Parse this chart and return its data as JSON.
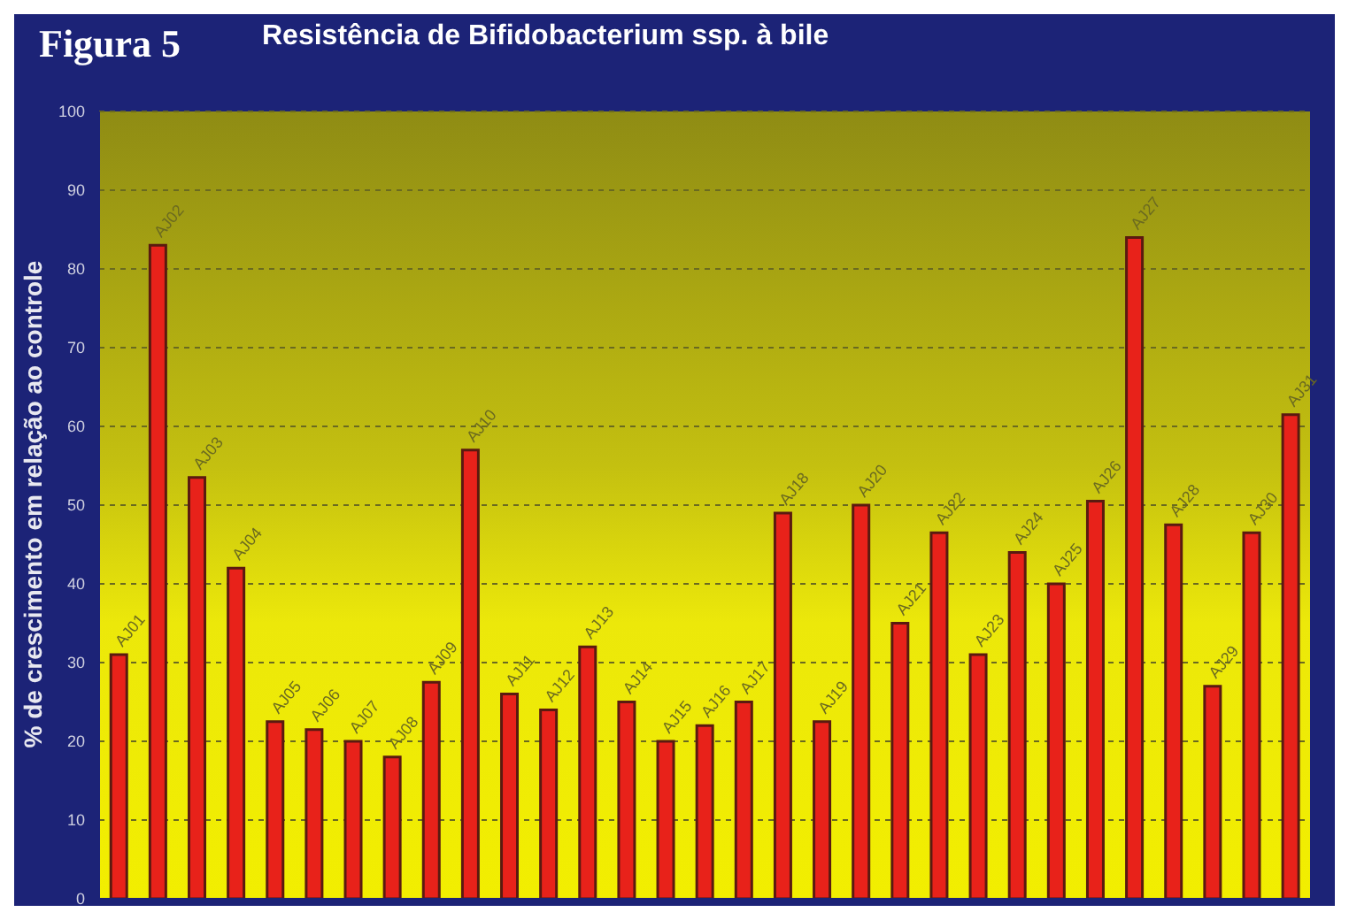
{
  "chart_data": {
    "type": "bar",
    "title": "Resistência de Bifidobacterium ssp. à bile",
    "annotations": [
      "Figura 5"
    ],
    "ylabel": "% de crescimento em relação ao controle",
    "categories": [
      "AJ01",
      "AJ02",
      "AJ03",
      "AJ04",
      "AJ05",
      "AJ06",
      "AJ07",
      "AJ08",
      "AJ09",
      "AJ10",
      "AJ11",
      "AJ12",
      "AJ13",
      "AJ14",
      "AJ15",
      "AJ16",
      "AJ17",
      "AJ18",
      "AJ19",
      "AJ20",
      "AJ21",
      "AJ22",
      "AJ23",
      "AJ24",
      "AJ25",
      "AJ26",
      "AJ27",
      "AJ28",
      "AJ29",
      "AJ30",
      "AJ31"
    ],
    "values": [
      31,
      83,
      53.5,
      42,
      22.5,
      21.5,
      20,
      18,
      27.5,
      57,
      26,
      24,
      32,
      25,
      20,
      22,
      25,
      49,
      22.5,
      50,
      35,
      46.5,
      31,
      44,
      40,
      50.5,
      84,
      47.5,
      27,
      46.5,
      61.5
    ],
    "color": "#e8221a",
    "ylim": [
      0,
      100
    ],
    "yticks": [
      0,
      10,
      20,
      30,
      40,
      50,
      60,
      70,
      80,
      90,
      100
    ],
    "grid": "y",
    "tick_labels": "y"
  }
}
